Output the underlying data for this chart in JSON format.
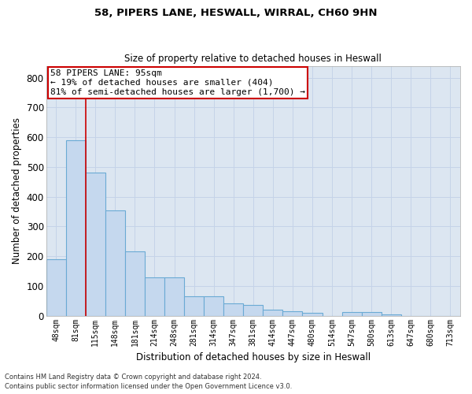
{
  "title1": "58, PIPERS LANE, HESWALL, WIRRAL, CH60 9HN",
  "title2": "Size of property relative to detached houses in Heswall",
  "xlabel": "Distribution of detached houses by size in Heswall",
  "ylabel": "Number of detached properties",
  "categories": [
    "48sqm",
    "81sqm",
    "115sqm",
    "148sqm",
    "181sqm",
    "214sqm",
    "248sqm",
    "281sqm",
    "314sqm",
    "347sqm",
    "381sqm",
    "414sqm",
    "447sqm",
    "480sqm",
    "514sqm",
    "547sqm",
    "580sqm",
    "613sqm",
    "647sqm",
    "680sqm",
    "713sqm"
  ],
  "values": [
    190,
    590,
    480,
    355,
    215,
    130,
    130,
    65,
    65,
    42,
    35,
    20,
    15,
    10,
    0,
    12,
    12,
    5,
    0,
    0,
    0
  ],
  "bar_color": "#c5d8ee",
  "bar_edge_color": "#6aaad4",
  "vline_x_index": 1.5,
  "vline_color": "#cc0000",
  "annotation_text": "58 PIPERS LANE: 95sqm\n← 19% of detached houses are smaller (404)\n81% of semi-detached houses are larger (1,700) →",
  "annotation_box_color": "#ffffff",
  "annotation_box_edge": "#cc0000",
  "ylim": [
    0,
    840
  ],
  "yticks": [
    0,
    100,
    200,
    300,
    400,
    500,
    600,
    700,
    800
  ],
  "grid_color": "#c5d3e8",
  "bg_color": "#dce6f1",
  "footer1": "Contains HM Land Registry data © Crown copyright and database right 2024.",
  "footer2": "Contains public sector information licensed under the Open Government Licence v3.0."
}
